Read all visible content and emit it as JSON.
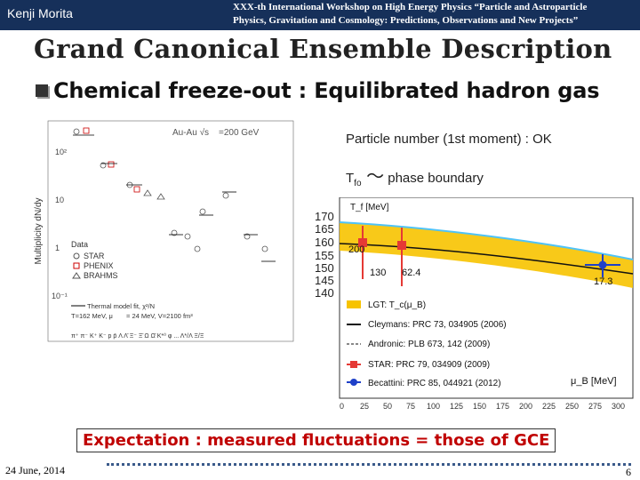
{
  "header": {
    "author": "Kenji Morita",
    "workshop_line1": "XXX-th International Workshop on High Energy Physics “Particle and Astroparticle",
    "workshop_line2": "Physics, Gravitation and Cosmology: Predictions, Observations and New Projects”"
  },
  "slide": {
    "title": "Grand Canonical Ensemble Description",
    "subtitle": "Chemical freeze-out : Equilibrated  hadron gas",
    "point1": "Particle number (1st moment) : OK",
    "point2_prefix": "T",
    "point2_sub": "fo",
    "point2_tilde": " ～",
    "point2_suffix": "phase boundary",
    "expectation": "Expectation : measured fluctuations = those of GCE"
  },
  "footer": {
    "date": "24 June, 2014",
    "page": "6"
  },
  "left_figure": {
    "ylabel": "Multiplicity dN/dy",
    "collision": "Au-Au  √s",
    "energy": "=200 GeV",
    "yticks": [
      "10²",
      "10",
      "1",
      "10⁻¹"
    ],
    "legend_title": "Data",
    "legend_items": [
      "STAR",
      "PHENIX",
      "BRAHMS"
    ],
    "model_line1": "Thermal model fit, χ²/N",
    "model_line2": "T=162 MeV, μ",
    "model_line3": "= 24 MeV, V=2100 fm³",
    "particles": "π⁺ π⁻ K⁺ K⁻ p p̄ Λ Λ̄ Ξ⁻ Ξ̄ Ω Ω̄ K*⁰ φ ... Λ*/Λ Ξ/Ξ"
  },
  "right_figure": {
    "ylabel": "T_f [MeV]",
    "xlabel": "μ_B [MeV]",
    "yticks": [
      "170",
      "165",
      "160",
      "155",
      "150",
      "145",
      "140"
    ],
    "xticks": [
      "0",
      "25",
      "50",
      "75",
      "100",
      "125",
      "150",
      "175",
      "200",
      "225",
      "250",
      "275",
      "300"
    ],
    "point_labels": [
      "200",
      "130",
      "62.4",
      "17.3"
    ],
    "legend": [
      "LGT: T_c(μ_B)",
      "Cleymans: PRC 73, 034905 (2006)",
      "Andronic: PLB 673, 142 (2009)",
      "STAR: PRC 79, 034909 (2009)",
      "Becattini: PRC 85, 044921 (2012)"
    ],
    "colors": {
      "band": "#f7c300",
      "lgt": "#4fc3f7",
      "star": "#e53935",
      "becattini": "#1e40c8",
      "line": "#111111"
    }
  }
}
